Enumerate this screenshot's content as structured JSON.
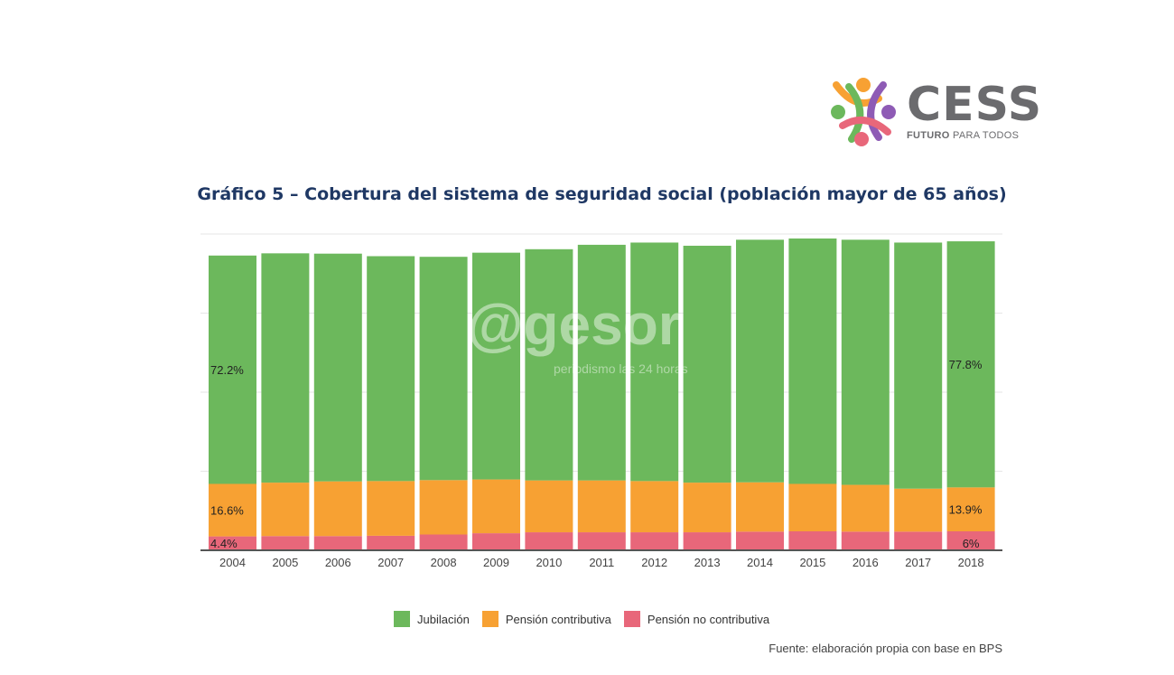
{
  "logo": {
    "name": "CESS",
    "tagline_bold": "FUTURO",
    "tagline_rest": " PARA TODOS"
  },
  "watermark": {
    "main": "@gesor",
    "sub": "periodismo las 24 horas"
  },
  "footer": {
    "source": "Fuente: elaboración propia con base en BPS"
  },
  "chart_data": {
    "type": "bar",
    "stacked": true,
    "title": "Gráfico 5 – Cobertura del sistema de seguridad social (población mayor de 65 años)",
    "xlabel": "",
    "ylabel": "",
    "ylim": [
      0,
      100
    ],
    "grid": true,
    "legend_position": "bottom",
    "categories": [
      "2004",
      "2005",
      "2006",
      "2007",
      "2008",
      "2009",
      "2010",
      "2011",
      "2012",
      "2013",
      "2014",
      "2015",
      "2016",
      "2017",
      "2018"
    ],
    "series": [
      {
        "name": "Pensión no contributiva",
        "color": "#e8677a",
        "values": [
          4.4,
          4.5,
          4.5,
          4.6,
          5.0,
          5.4,
          5.7,
          5.7,
          5.7,
          5.7,
          5.9,
          6.0,
          5.9,
          5.9,
          6.0
        ]
      },
      {
        "name": "Pensión contributiva",
        "color": "#f7a133",
        "values": [
          16.6,
          16.9,
          17.3,
          17.3,
          17.2,
          17.0,
          16.4,
          16.4,
          16.2,
          15.7,
          15.6,
          15.0,
          14.8,
          13.6,
          13.9
        ]
      },
      {
        "name": "Jubilación",
        "color": "#6cb85c",
        "values": [
          72.2,
          72.5,
          72.0,
          71.1,
          70.6,
          71.7,
          73.1,
          74.5,
          75.4,
          74.9,
          76.7,
          77.6,
          77.5,
          77.8,
          77.8
        ]
      }
    ],
    "data_labels": [
      {
        "category": "2004",
        "series": "Jubilación",
        "text": "72.2%"
      },
      {
        "category": "2004",
        "series": "Pensión contributiva",
        "text": "16.6%"
      },
      {
        "category": "2004",
        "series": "Pensión no contributiva",
        "text": "4.4%"
      },
      {
        "category": "2018",
        "series": "Jubilación",
        "text": "77.8%"
      },
      {
        "category": "2018",
        "series": "Pensión contributiva",
        "text": "13.9%"
      },
      {
        "category": "2018",
        "series": "Pensión no contributiva",
        "text": "6%"
      }
    ],
    "legend": [
      "Jubilación",
      "Pensión contributiva",
      "Pensión no contributiva"
    ]
  }
}
